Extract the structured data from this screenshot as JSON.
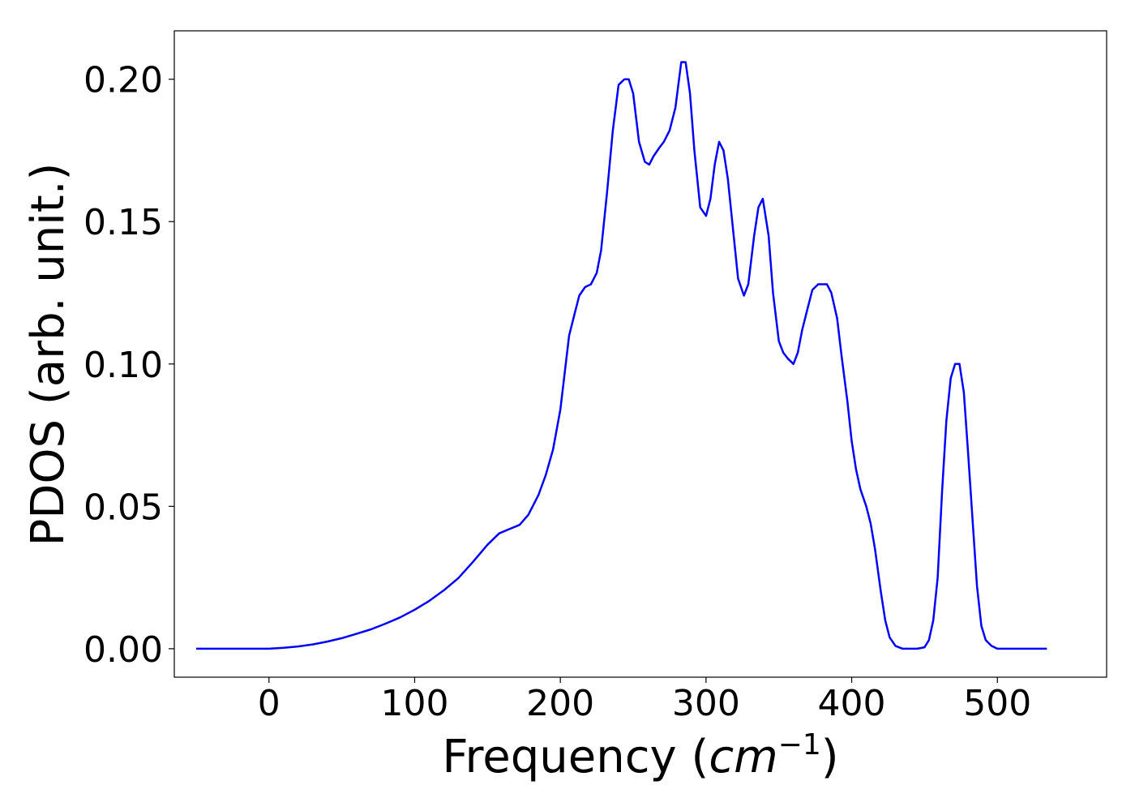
{
  "chart_data": {
    "type": "line",
    "xlabel": "Frequency",
    "xlabel_unit_base": "cm",
    "xlabel_unit_exp": "−1",
    "ylabel": "PDOS (arb. unit.)",
    "xlim": [
      -65,
      575
    ],
    "ylim": [
      -0.01,
      0.217
    ],
    "xticks": [
      0,
      100,
      200,
      300,
      400,
      500
    ],
    "yticks": [
      0.0,
      0.05,
      0.1,
      0.15,
      0.2
    ],
    "ytick_labels": [
      "0.00",
      "0.05",
      "0.10",
      "0.15",
      "0.20"
    ],
    "grid": false,
    "legend": "none",
    "line_color": "#0000ff",
    "series": [
      {
        "x": [
          -50,
          0,
          10,
          20,
          30,
          40,
          50,
          60,
          70,
          80,
          90,
          100,
          110,
          120,
          130,
          140,
          150,
          158,
          165,
          172,
          178,
          185,
          190,
          195,
          200,
          203,
          206,
          210,
          213,
          217,
          221,
          225,
          228,
          232,
          236,
          240,
          244,
          247,
          250,
          254,
          258,
          261,
          264,
          268,
          271,
          275,
          279,
          283,
          286,
          289,
          292,
          296,
          300,
          303,
          306,
          309,
          312,
          315,
          319,
          322,
          326,
          329,
          333,
          336,
          339,
          343,
          346,
          350,
          353,
          356,
          360,
          363,
          366,
          370,
          373,
          377,
          380,
          383,
          386,
          390,
          393,
          397,
          400,
          403,
          406,
          410,
          413,
          416,
          420,
          423,
          426,
          430,
          435,
          440,
          445,
          450,
          453,
          456,
          459,
          462,
          465,
          468,
          471,
          474,
          477,
          480,
          483,
          486,
          489,
          492,
          496,
          500,
          510,
          520,
          534
        ],
        "y": [
          0.0,
          0.0,
          0.0003,
          0.0008,
          0.0015,
          0.0025,
          0.0037,
          0.0052,
          0.0068,
          0.0088,
          0.011,
          0.0137,
          0.0168,
          0.0205,
          0.0248,
          0.0305,
          0.0365,
          0.0405,
          0.042,
          0.0435,
          0.047,
          0.054,
          0.061,
          0.07,
          0.084,
          0.097,
          0.11,
          0.118,
          0.124,
          0.127,
          0.128,
          0.132,
          0.14,
          0.16,
          0.182,
          0.198,
          0.2,
          0.2,
          0.195,
          0.178,
          0.171,
          0.17,
          0.173,
          0.176,
          0.178,
          0.182,
          0.19,
          0.206,
          0.206,
          0.195,
          0.175,
          0.155,
          0.152,
          0.158,
          0.17,
          0.178,
          0.175,
          0.165,
          0.145,
          0.13,
          0.124,
          0.128,
          0.145,
          0.155,
          0.158,
          0.145,
          0.125,
          0.108,
          0.104,
          0.102,
          0.1,
          0.104,
          0.112,
          0.12,
          0.126,
          0.128,
          0.128,
          0.128,
          0.125,
          0.116,
          0.103,
          0.087,
          0.073,
          0.063,
          0.056,
          0.05,
          0.044,
          0.035,
          0.02,
          0.01,
          0.004,
          0.001,
          0.0,
          0.0,
          0.0,
          0.0005,
          0.003,
          0.01,
          0.025,
          0.055,
          0.08,
          0.095,
          0.1,
          0.1,
          0.09,
          0.068,
          0.045,
          0.022,
          0.008,
          0.003,
          0.001,
          0.0,
          0.0,
          0.0,
          0.0
        ]
      }
    ]
  }
}
